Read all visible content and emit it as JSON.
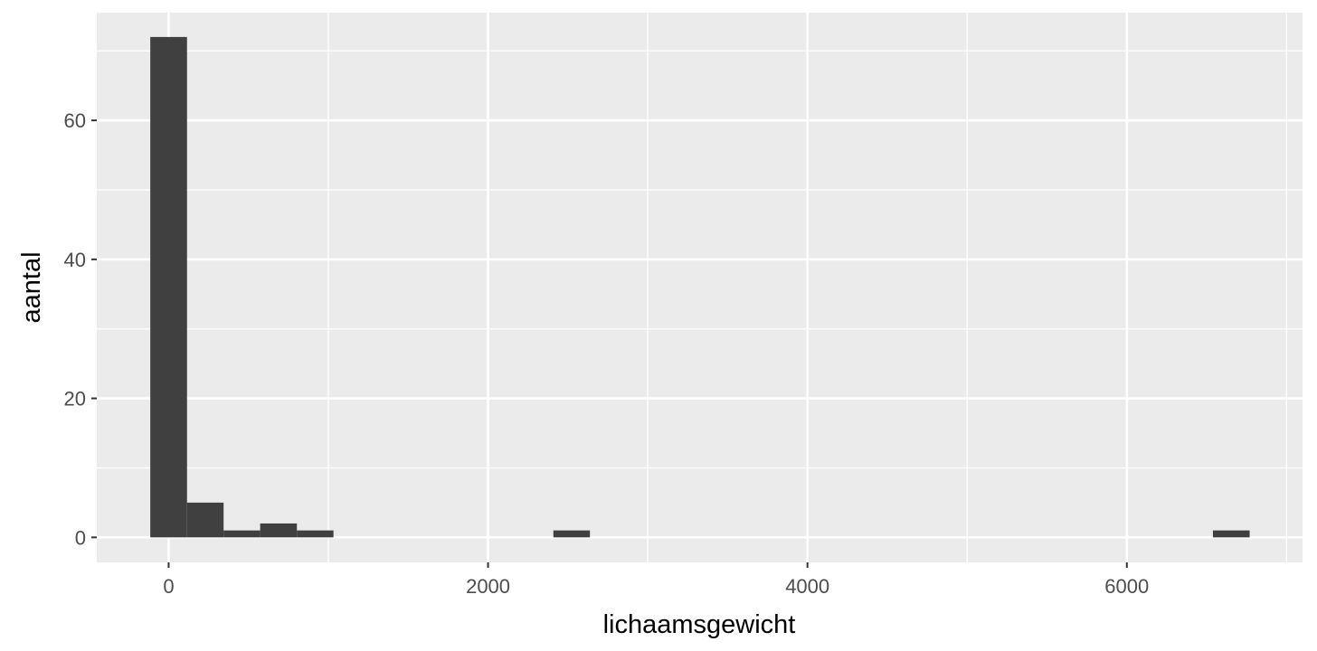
{
  "chart_data": {
    "type": "bar",
    "subtype": "histogram",
    "title": "",
    "xlabel": "lichaamsgewicht",
    "ylabel": "aantal",
    "xlim": [
      -450,
      7100
    ],
    "ylim": [
      -3.6,
      75.5
    ],
    "x_ticks": [
      0,
      2000,
      4000,
      6000
    ],
    "x_tick_labels": [
      "0",
      "2000",
      "4000",
      "6000"
    ],
    "y_ticks": [
      0,
      20,
      40,
      60
    ],
    "y_tick_labels": [
      "0",
      "20",
      "40",
      "60"
    ],
    "grid": true,
    "legend": "none",
    "bins": [
      {
        "x_start": -115,
        "x_end": 115,
        "count": 72
      },
      {
        "x_start": 115,
        "x_end": 344,
        "count": 5
      },
      {
        "x_start": 344,
        "x_end": 573,
        "count": 1
      },
      {
        "x_start": 573,
        "x_end": 803,
        "count": 2
      },
      {
        "x_start": 803,
        "x_end": 1032,
        "count": 1
      },
      {
        "x_start": 2409,
        "x_end": 2638,
        "count": 1
      },
      {
        "x_start": 6539,
        "x_end": 6769,
        "count": 1
      }
    ],
    "colors": {
      "bar": "#404040",
      "panel": "#EBEBEB",
      "grid": "#FFFFFF",
      "tick_text": "#4D4D4D"
    }
  }
}
